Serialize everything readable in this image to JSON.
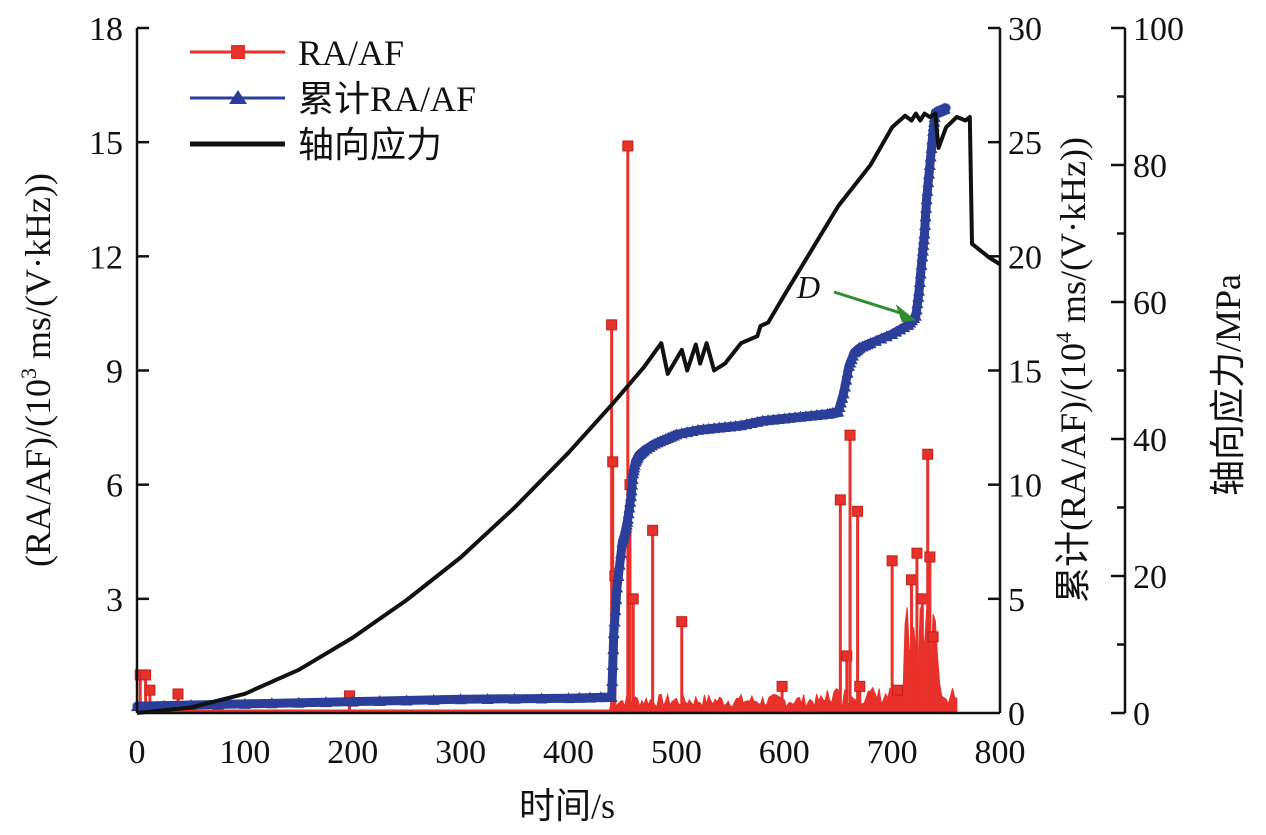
{
  "chart_data": {
    "type": "line",
    "title": "",
    "xlabel": "时间/s",
    "xlim": [
      0,
      800
    ],
    "x_ticks": [
      0,
      100,
      200,
      300,
      400,
      500,
      600,
      700,
      800
    ],
    "y_axes": {
      "left": {
        "label": "(RA/AF)/(10³ ms/(V·kHz))",
        "label_parts": [
          "(RA/AF)/(10",
          "3",
          " ms/(V·kHz))"
        ],
        "ylim": [
          0,
          18
        ],
        "ticks": [
          3,
          6,
          9,
          12,
          15,
          18
        ],
        "tick_labels": [
          "3",
          "6",
          "9",
          "12",
          "15",
          "18"
        ]
      },
      "right_inner": {
        "label": "累计(RA/AF)/(10⁴ ms/(V·kHz))",
        "label_parts": [
          "累计(RA/AF)/(10",
          "4",
          " ms/(V·kHz))"
        ],
        "ylim": [
          0,
          30
        ],
        "ticks": [
          0,
          5,
          10,
          15,
          20,
          25,
          30
        ],
        "tick_labels": [
          "0",
          "5",
          "10",
          "15",
          "20",
          "25",
          "30"
        ]
      },
      "right_outer": {
        "label": "轴向应力/MPa",
        "ylim": [
          0,
          100
        ],
        "ticks": [
          0,
          20,
          40,
          60,
          80,
          100
        ],
        "minor_ticks": [
          10,
          30,
          50,
          70,
          90
        ],
        "tick_labels": [
          "0",
          "20",
          "40",
          "60",
          "80",
          "100"
        ]
      }
    },
    "x_zero_label": "0",
    "legend": {
      "position": "top-left",
      "entries": [
        {
          "label": "RA/AF",
          "color": "#e8312a",
          "marker": "square"
        },
        {
          "label": "累计RA/AF",
          "color": "#2b3f9a",
          "marker": "triangle"
        },
        {
          "label": "轴向应力",
          "color": "#111111",
          "marker": "none"
        }
      ]
    },
    "annotations": [
      {
        "text": "D",
        "points_to": {
          "x": 722,
          "y_cumulative": 17.2
        },
        "arrow_color": "#2e8b2e"
      }
    ],
    "series": [
      {
        "name": "RA/AF",
        "axis": "left",
        "color": "#e8312a",
        "kind": "spikes",
        "baseline": 0.05,
        "spikes": [
          {
            "x": 3,
            "y": 1.0
          },
          {
            "x": 8,
            "y": 1.0
          },
          {
            "x": 12,
            "y": 0.6
          },
          {
            "x": 38,
            "y": 0.5
          },
          {
            "x": 197,
            "y": 0.45
          },
          {
            "x": 440,
            "y": 10.2
          },
          {
            "x": 441,
            "y": 6.6
          },
          {
            "x": 443,
            "y": 3.6
          },
          {
            "x": 455,
            "y": 14.9
          },
          {
            "x": 457,
            "y": 6.0
          },
          {
            "x": 460,
            "y": 3.0
          },
          {
            "x": 478,
            "y": 4.8
          },
          {
            "x": 505,
            "y": 2.4
          },
          {
            "x": 598,
            "y": 0.7
          },
          {
            "x": 652,
            "y": 5.6
          },
          {
            "x": 658,
            "y": 1.5
          },
          {
            "x": 661,
            "y": 7.3
          },
          {
            "x": 668,
            "y": 5.3
          },
          {
            "x": 670,
            "y": 0.7
          },
          {
            "x": 700,
            "y": 4.0
          },
          {
            "x": 705,
            "y": 0.6
          },
          {
            "x": 718,
            "y": 3.5
          },
          {
            "x": 723,
            "y": 4.2
          },
          {
            "x": 728,
            "y": 3.0
          },
          {
            "x": 733,
            "y": 6.8
          },
          {
            "x": 735,
            "y": 4.1
          },
          {
            "x": 738,
            "y": 2.0
          }
        ],
        "noise_range": [
          440,
          760
        ]
      },
      {
        "name": "累计RA/AF",
        "axis": "right_inner",
        "color": "#2b3f9a",
        "x": [
          0,
          100,
          200,
          300,
          400,
          440,
          442,
          445,
          450,
          453,
          455,
          458,
          460,
          462,
          465,
          470,
          480,
          490,
          500,
          520,
          540,
          560,
          580,
          600,
          620,
          640,
          650,
          655,
          660,
          665,
          670,
          680,
          700,
          715,
          722,
          725,
          728,
          730,
          732,
          735,
          738,
          740,
          745,
          750
        ],
        "y": [
          0.3,
          0.4,
          0.5,
          0.6,
          0.65,
          0.7,
          3.5,
          5.5,
          7.5,
          8.0,
          8.5,
          9.5,
          10.5,
          11.0,
          11.3,
          11.5,
          11.8,
          12.0,
          12.2,
          12.4,
          12.5,
          12.6,
          12.8,
          12.9,
          13.0,
          13.1,
          13.2,
          14.0,
          15.2,
          15.8,
          16.0,
          16.2,
          16.6,
          17.0,
          17.4,
          18.5,
          20.0,
          21.0,
          22.5,
          24.0,
          25.5,
          26.3,
          26.4,
          26.5
        ]
      },
      {
        "name": "轴向应力",
        "axis": "right_outer",
        "color": "#111111",
        "x": [
          0,
          50,
          100,
          150,
          200,
          250,
          300,
          350,
          400,
          440,
          470,
          486,
          492,
          505,
          510,
          518,
          522,
          528,
          535,
          545,
          560,
          575,
          578,
          585,
          600,
          650,
          680,
          700,
          712,
          718,
          722,
          726,
          730,
          735,
          740,
          743,
          750,
          760,
          768,
          772,
          774,
          790,
          800
        ],
        "y": [
          0,
          0.8,
          2.8,
          6.3,
          11.0,
          16.5,
          22.7,
          30.0,
          38.0,
          45.0,
          50.5,
          54.0,
          49.5,
          53.0,
          50.0,
          53.8,
          51.0,
          54.0,
          50.0,
          51.0,
          54.0,
          55.0,
          56.5,
          57.0,
          61.0,
          74.0,
          80.0,
          85.5,
          87.2,
          86.5,
          87.5,
          86.5,
          87.5,
          87.0,
          87.5,
          82.5,
          85.5,
          87.0,
          86.5,
          87.0,
          68.5,
          66.5,
          65.5
        ]
      }
    ]
  }
}
